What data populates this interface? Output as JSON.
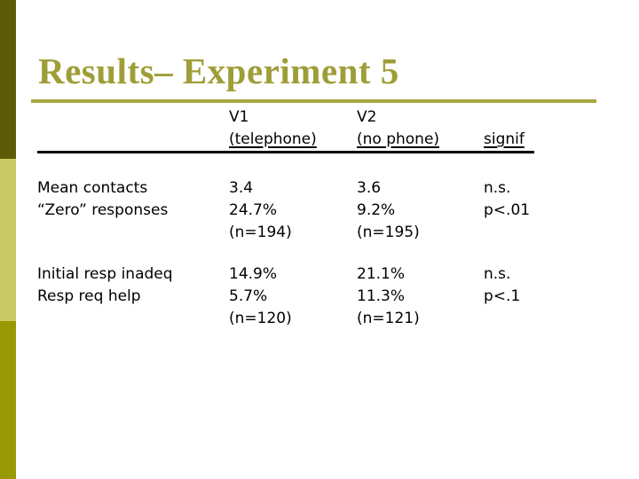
{
  "slide": {
    "title": "Results– Experiment 5"
  },
  "colors": {
    "accent_dark": "#5c5c08",
    "accent_light": "#c9c963",
    "accent_mid": "#999903",
    "title": "#9e9e38",
    "rule": "#a8a83d",
    "text": "#000000",
    "bg": "#ffffff"
  },
  "table": {
    "header": {
      "col1": "",
      "col2": [
        "V1",
        "(telephone)"
      ],
      "col3": [
        "V2",
        "(no phone)"
      ],
      "col4": [
        "",
        "signif"
      ]
    },
    "rows": [
      {
        "label": [
          "Mean contacts",
          "“Zero” responses"
        ],
        "v1": [
          "3.4",
          "24.7%",
          "(n=194)"
        ],
        "v2": [
          "3.6",
          "9.2%",
          "(n=195)"
        ],
        "signif": [
          "n.s.",
          "p<.01"
        ]
      },
      {
        "label": [
          "Initial resp inadeq",
          "Resp req help"
        ],
        "v1": [
          "14.9%",
          "5.7%",
          "(n=120)"
        ],
        "v2": [
          "21.1%",
          "11.3%",
          "(n=121)"
        ],
        "signif": [
          "n.s.",
          "p<.1"
        ]
      }
    ]
  }
}
